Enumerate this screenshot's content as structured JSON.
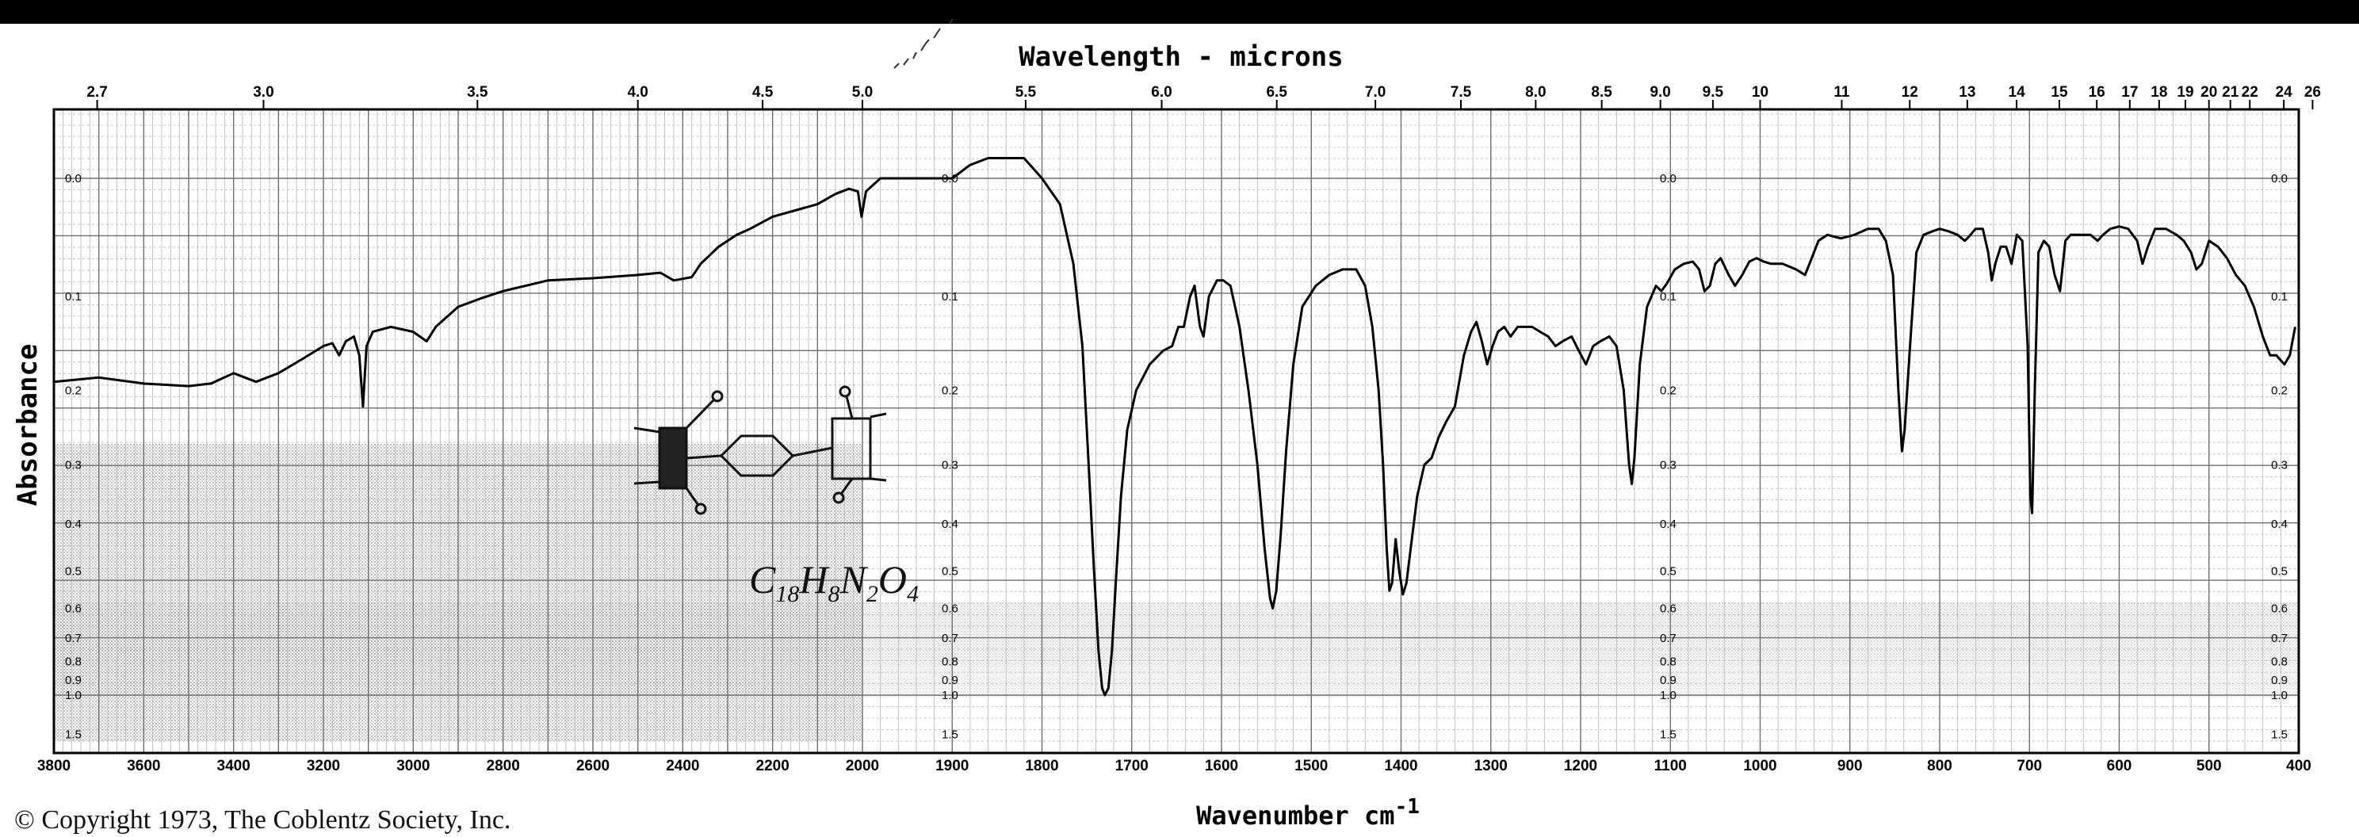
{
  "copyright": "© Copyright 1973, The Coblentz Society, Inc.",
  "formula": {
    "c": "C",
    "c_sub": "18",
    "h": "H",
    "h_sub": "8",
    "n": "N",
    "n_sub": "2",
    "o": "O",
    "o_sub": "4"
  },
  "colors": {
    "ink": "#000000",
    "grid_dark": "#6e6e6e",
    "grid_light": "#b4b4b4",
    "shade": "#8a8a8a",
    "background": "#ffffff",
    "topbar": "#000000"
  },
  "chart_data": {
    "type": "line",
    "title": "Wavelength - microns",
    "xlabel": "Wavenumber cm",
    "xlabel_sup": "-1",
    "ylabel": "Absorbance",
    "x_axis": {
      "range": [
        3800,
        400
      ],
      "scale_break_at": 2000,
      "ticks_left": [
        3800,
        3600,
        3400,
        3200,
        3000,
        2800,
        2600,
        2400,
        2200,
        2000
      ],
      "ticks_right": [
        1900,
        1800,
        1700,
        1600,
        1500,
        1400,
        1300,
        1200,
        1100,
        1000,
        900,
        800,
        700,
        600,
        500,
        400
      ]
    },
    "wavelength_ticks": [
      {
        "label": "2.7",
        "um": 2.7
      },
      {
        "label": "3.0",
        "um": 3.0
      },
      {
        "label": "3.5",
        "um": 3.5
      },
      {
        "label": "4.0",
        "um": 4.0
      },
      {
        "label": "4.5",
        "um": 4.5
      },
      {
        "label": "5.0",
        "um": 5.0
      },
      {
        "label": "5.5",
        "um": 5.5
      },
      {
        "label": "6.0",
        "um": 6.0
      },
      {
        "label": "6.5",
        "um": 6.5
      },
      {
        "label": "7.0",
        "um": 7.0
      },
      {
        "label": "7.5",
        "um": 7.5
      },
      {
        "label": "8.0",
        "um": 8.0
      },
      {
        "label": "8.5",
        "um": 8.5
      },
      {
        "label": "9.0",
        "um": 9.0
      },
      {
        "label": "9.5",
        "um": 9.5
      },
      {
        "label": "10",
        "um": 10
      },
      {
        "label": "11",
        "um": 11
      },
      {
        "label": "12",
        "um": 12
      },
      {
        "label": "13",
        "um": 13
      },
      {
        "label": "14",
        "um": 14
      },
      {
        "label": "15",
        "um": 15
      },
      {
        "label": "16",
        "um": 16
      },
      {
        "label": "17",
        "um": 17
      },
      {
        "label": "18",
        "um": 18
      },
      {
        "label": "19",
        "um": 19
      },
      {
        "label": "20",
        "um": 20
      },
      {
        "label": "21",
        "um": 21
      },
      {
        "label": "22",
        "um": 22
      },
      {
        "label": "24",
        "um": 24
      },
      {
        "label": "26",
        "um": 26
      }
    ],
    "absorbance_ticks": [
      {
        "label": "0.0",
        "v": 0.0
      },
      {
        "label": "0.1",
        "v": 0.1
      },
      {
        "label": "0.2",
        "v": 0.2
      },
      {
        "label": "0.3",
        "v": 0.3
      },
      {
        "label": "0.4",
        "v": 0.4
      },
      {
        "label": "0.5",
        "v": 0.5
      },
      {
        "label": "0.6",
        "v": 0.6
      },
      {
        "label": "0.7",
        "v": 0.7
      },
      {
        "label": "0.8",
        "v": 0.8
      },
      {
        "label": "0.9",
        "v": 0.9
      },
      {
        "label": "1.0",
        "v": 1.0
      },
      {
        "label": "1.5",
        "v": 1.5
      }
    ],
    "series": [
      {
        "points": [
          [
            3800,
            0.19
          ],
          [
            3700,
            0.185
          ],
          [
            3600,
            0.192
          ],
          [
            3500,
            0.195
          ],
          [
            3450,
            0.192
          ],
          [
            3400,
            0.18
          ],
          [
            3350,
            0.19
          ],
          [
            3300,
            0.18
          ],
          [
            3250,
            0.165
          ],
          [
            3200,
            0.15
          ],
          [
            3180,
            0.147
          ],
          [
            3165,
            0.16
          ],
          [
            3150,
            0.145
          ],
          [
            3132,
            0.14
          ],
          [
            3120,
            0.16
          ],
          [
            3112,
            0.22
          ],
          [
            3104,
            0.15
          ],
          [
            3090,
            0.135
          ],
          [
            3050,
            0.13
          ],
          [
            3000,
            0.135
          ],
          [
            2970,
            0.145
          ],
          [
            2950,
            0.13
          ],
          [
            2900,
            0.11
          ],
          [
            2850,
            0.102
          ],
          [
            2800,
            0.095
          ],
          [
            2700,
            0.085
          ],
          [
            2600,
            0.083
          ],
          [
            2500,
            0.08
          ],
          [
            2450,
            0.078
          ],
          [
            2420,
            0.085
          ],
          [
            2380,
            0.082
          ],
          [
            2360,
            0.07
          ],
          [
            2320,
            0.055
          ],
          [
            2280,
            0.045
          ],
          [
            2250,
            0.04
          ],
          [
            2200,
            0.03
          ],
          [
            2150,
            0.025
          ],
          [
            2100,
            0.02
          ],
          [
            2060,
            0.012
          ],
          [
            2030,
            0.008
          ],
          [
            2010,
            0.01
          ],
          [
            2002,
            0.03
          ],
          [
            1996,
            0.01
          ],
          [
            1980,
            0.0
          ],
          [
            1950,
            0.0
          ],
          [
            1920,
            0.0
          ],
          [
            1900,
            0.0
          ],
          [
            1880,
            -0.01
          ],
          [
            1860,
            -0.015
          ],
          [
            1840,
            -0.015
          ],
          [
            1820,
            -0.015
          ],
          [
            1800,
            0.0
          ],
          [
            1780,
            0.02
          ],
          [
            1765,
            0.07
          ],
          [
            1755,
            0.15
          ],
          [
            1748,
            0.3
          ],
          [
            1742,
            0.5
          ],
          [
            1737,
            0.75
          ],
          [
            1733,
            0.95
          ],
          [
            1730,
            1.0
          ],
          [
            1726,
            0.95
          ],
          [
            1722,
            0.75
          ],
          [
            1717,
            0.5
          ],
          [
            1712,
            0.35
          ],
          [
            1705,
            0.25
          ],
          [
            1695,
            0.2
          ],
          [
            1680,
            0.17
          ],
          [
            1665,
            0.155
          ],
          [
            1655,
            0.15
          ],
          [
            1648,
            0.13
          ],
          [
            1642,
            0.13
          ],
          [
            1635,
            0.1
          ],
          [
            1630,
            0.09
          ],
          [
            1624,
            0.13
          ],
          [
            1620,
            0.14
          ],
          [
            1614,
            0.1
          ],
          [
            1605,
            0.085
          ],
          [
            1598,
            0.085
          ],
          [
            1590,
            0.09
          ],
          [
            1580,
            0.13
          ],
          [
            1570,
            0.2
          ],
          [
            1560,
            0.3
          ],
          [
            1552,
            0.45
          ],
          [
            1546,
            0.57
          ],
          [
            1543,
            0.6
          ],
          [
            1539,
            0.55
          ],
          [
            1534,
            0.42
          ],
          [
            1528,
            0.28
          ],
          [
            1520,
            0.17
          ],
          [
            1510,
            0.11
          ],
          [
            1495,
            0.09
          ],
          [
            1480,
            0.08
          ],
          [
            1465,
            0.075
          ],
          [
            1450,
            0.075
          ],
          [
            1440,
            0.09
          ],
          [
            1432,
            0.13
          ],
          [
            1425,
            0.2
          ],
          [
            1420,
            0.3
          ],
          [
            1416,
            0.45
          ],
          [
            1413,
            0.55
          ],
          [
            1410,
            0.53
          ],
          [
            1406,
            0.43
          ],
          [
            1402,
            0.5
          ],
          [
            1398,
            0.56
          ],
          [
            1394,
            0.53
          ],
          [
            1388,
            0.43
          ],
          [
            1382,
            0.35
          ],
          [
            1374,
            0.3
          ],
          [
            1366,
            0.29
          ],
          [
            1358,
            0.26
          ],
          [
            1350,
            0.24
          ],
          [
            1340,
            0.22
          ],
          [
            1330,
            0.16
          ],
          [
            1322,
            0.135
          ],
          [
            1316,
            0.125
          ],
          [
            1310,
            0.145
          ],
          [
            1304,
            0.17
          ],
          [
            1298,
            0.15
          ],
          [
            1292,
            0.135
          ],
          [
            1285,
            0.13
          ],
          [
            1278,
            0.14
          ],
          [
            1270,
            0.13
          ],
          [
            1262,
            0.13
          ],
          [
            1254,
            0.13
          ],
          [
            1245,
            0.135
          ],
          [
            1236,
            0.14
          ],
          [
            1228,
            0.15
          ],
          [
            1220,
            0.145
          ],
          [
            1210,
            0.14
          ],
          [
            1202,
            0.155
          ],
          [
            1194,
            0.17
          ],
          [
            1186,
            0.15
          ],
          [
            1178,
            0.145
          ],
          [
            1168,
            0.14
          ],
          [
            1160,
            0.15
          ],
          [
            1152,
            0.2
          ],
          [
            1146,
            0.3
          ],
          [
            1143,
            0.33
          ],
          [
            1140,
            0.29
          ],
          [
            1134,
            0.17
          ],
          [
            1126,
            0.11
          ],
          [
            1116,
            0.09
          ],
          [
            1110,
            0.095
          ],
          [
            1104,
            0.088
          ],
          [
            1095,
            0.075
          ],
          [
            1085,
            0.07
          ],
          [
            1075,
            0.068
          ],
          [
            1068,
            0.075
          ],
          [
            1062,
            0.095
          ],
          [
            1056,
            0.09
          ],
          [
            1050,
            0.07
          ],
          [
            1044,
            0.065
          ],
          [
            1035,
            0.08
          ],
          [
            1028,
            0.09
          ],
          [
            1020,
            0.08
          ],
          [
            1012,
            0.068
          ],
          [
            1004,
            0.065
          ],
          [
            996,
            0.068
          ],
          [
            988,
            0.07
          ],
          [
            975,
            0.07
          ],
          [
            960,
            0.075
          ],
          [
            950,
            0.08
          ],
          [
            945,
            0.07
          ],
          [
            935,
            0.05
          ],
          [
            925,
            0.045
          ],
          [
            910,
            0.048
          ],
          [
            895,
            0.045
          ],
          [
            880,
            0.04
          ],
          [
            868,
            0.04
          ],
          [
            860,
            0.05
          ],
          [
            852,
            0.08
          ],
          [
            846,
            0.2
          ],
          [
            842,
            0.28
          ],
          [
            839,
            0.25
          ],
          [
            833,
            0.15
          ],
          [
            826,
            0.06
          ],
          [
            818,
            0.045
          ],
          [
            808,
            0.042
          ],
          [
            800,
            0.04
          ],
          [
            790,
            0.042
          ],
          [
            780,
            0.045
          ],
          [
            772,
            0.05
          ],
          [
            768,
            0.047
          ],
          [
            760,
            0.04
          ],
          [
            752,
            0.04
          ],
          [
            746,
            0.06
          ],
          [
            742,
            0.085
          ],
          [
            738,
            0.07
          ],
          [
            732,
            0.055
          ],
          [
            726,
            0.055
          ],
          [
            720,
            0.07
          ],
          [
            714,
            0.045
          ],
          [
            708,
            0.05
          ],
          [
            702,
            0.15
          ],
          [
            699,
            0.35
          ],
          [
            697,
            0.38
          ],
          [
            694,
            0.2
          ],
          [
            690,
            0.06
          ],
          [
            684,
            0.05
          ],
          [
            678,
            0.055
          ],
          [
            672,
            0.08
          ],
          [
            666,
            0.095
          ],
          [
            660,
            0.05
          ],
          [
            654,
            0.045
          ],
          [
            648,
            0.045
          ],
          [
            640,
            0.045
          ],
          [
            632,
            0.045
          ],
          [
            624,
            0.05
          ],
          [
            618,
            0.045
          ],
          [
            610,
            0.04
          ],
          [
            600,
            0.038
          ],
          [
            590,
            0.04
          ],
          [
            580,
            0.05
          ],
          [
            574,
            0.07
          ],
          [
            568,
            0.055
          ],
          [
            560,
            0.04
          ],
          [
            548,
            0.04
          ],
          [
            536,
            0.045
          ],
          [
            528,
            0.05
          ],
          [
            520,
            0.06
          ],
          [
            514,
            0.075
          ],
          [
            508,
            0.07
          ],
          [
            500,
            0.05
          ],
          [
            490,
            0.055
          ],
          [
            480,
            0.065
          ],
          [
            470,
            0.08
          ],
          [
            460,
            0.09
          ],
          [
            450,
            0.11
          ],
          [
            440,
            0.14
          ],
          [
            432,
            0.16
          ],
          [
            425,
            0.16
          ],
          [
            416,
            0.17
          ],
          [
            410,
            0.16
          ],
          [
            404,
            0.13
          ]
        ]
      }
    ]
  }
}
